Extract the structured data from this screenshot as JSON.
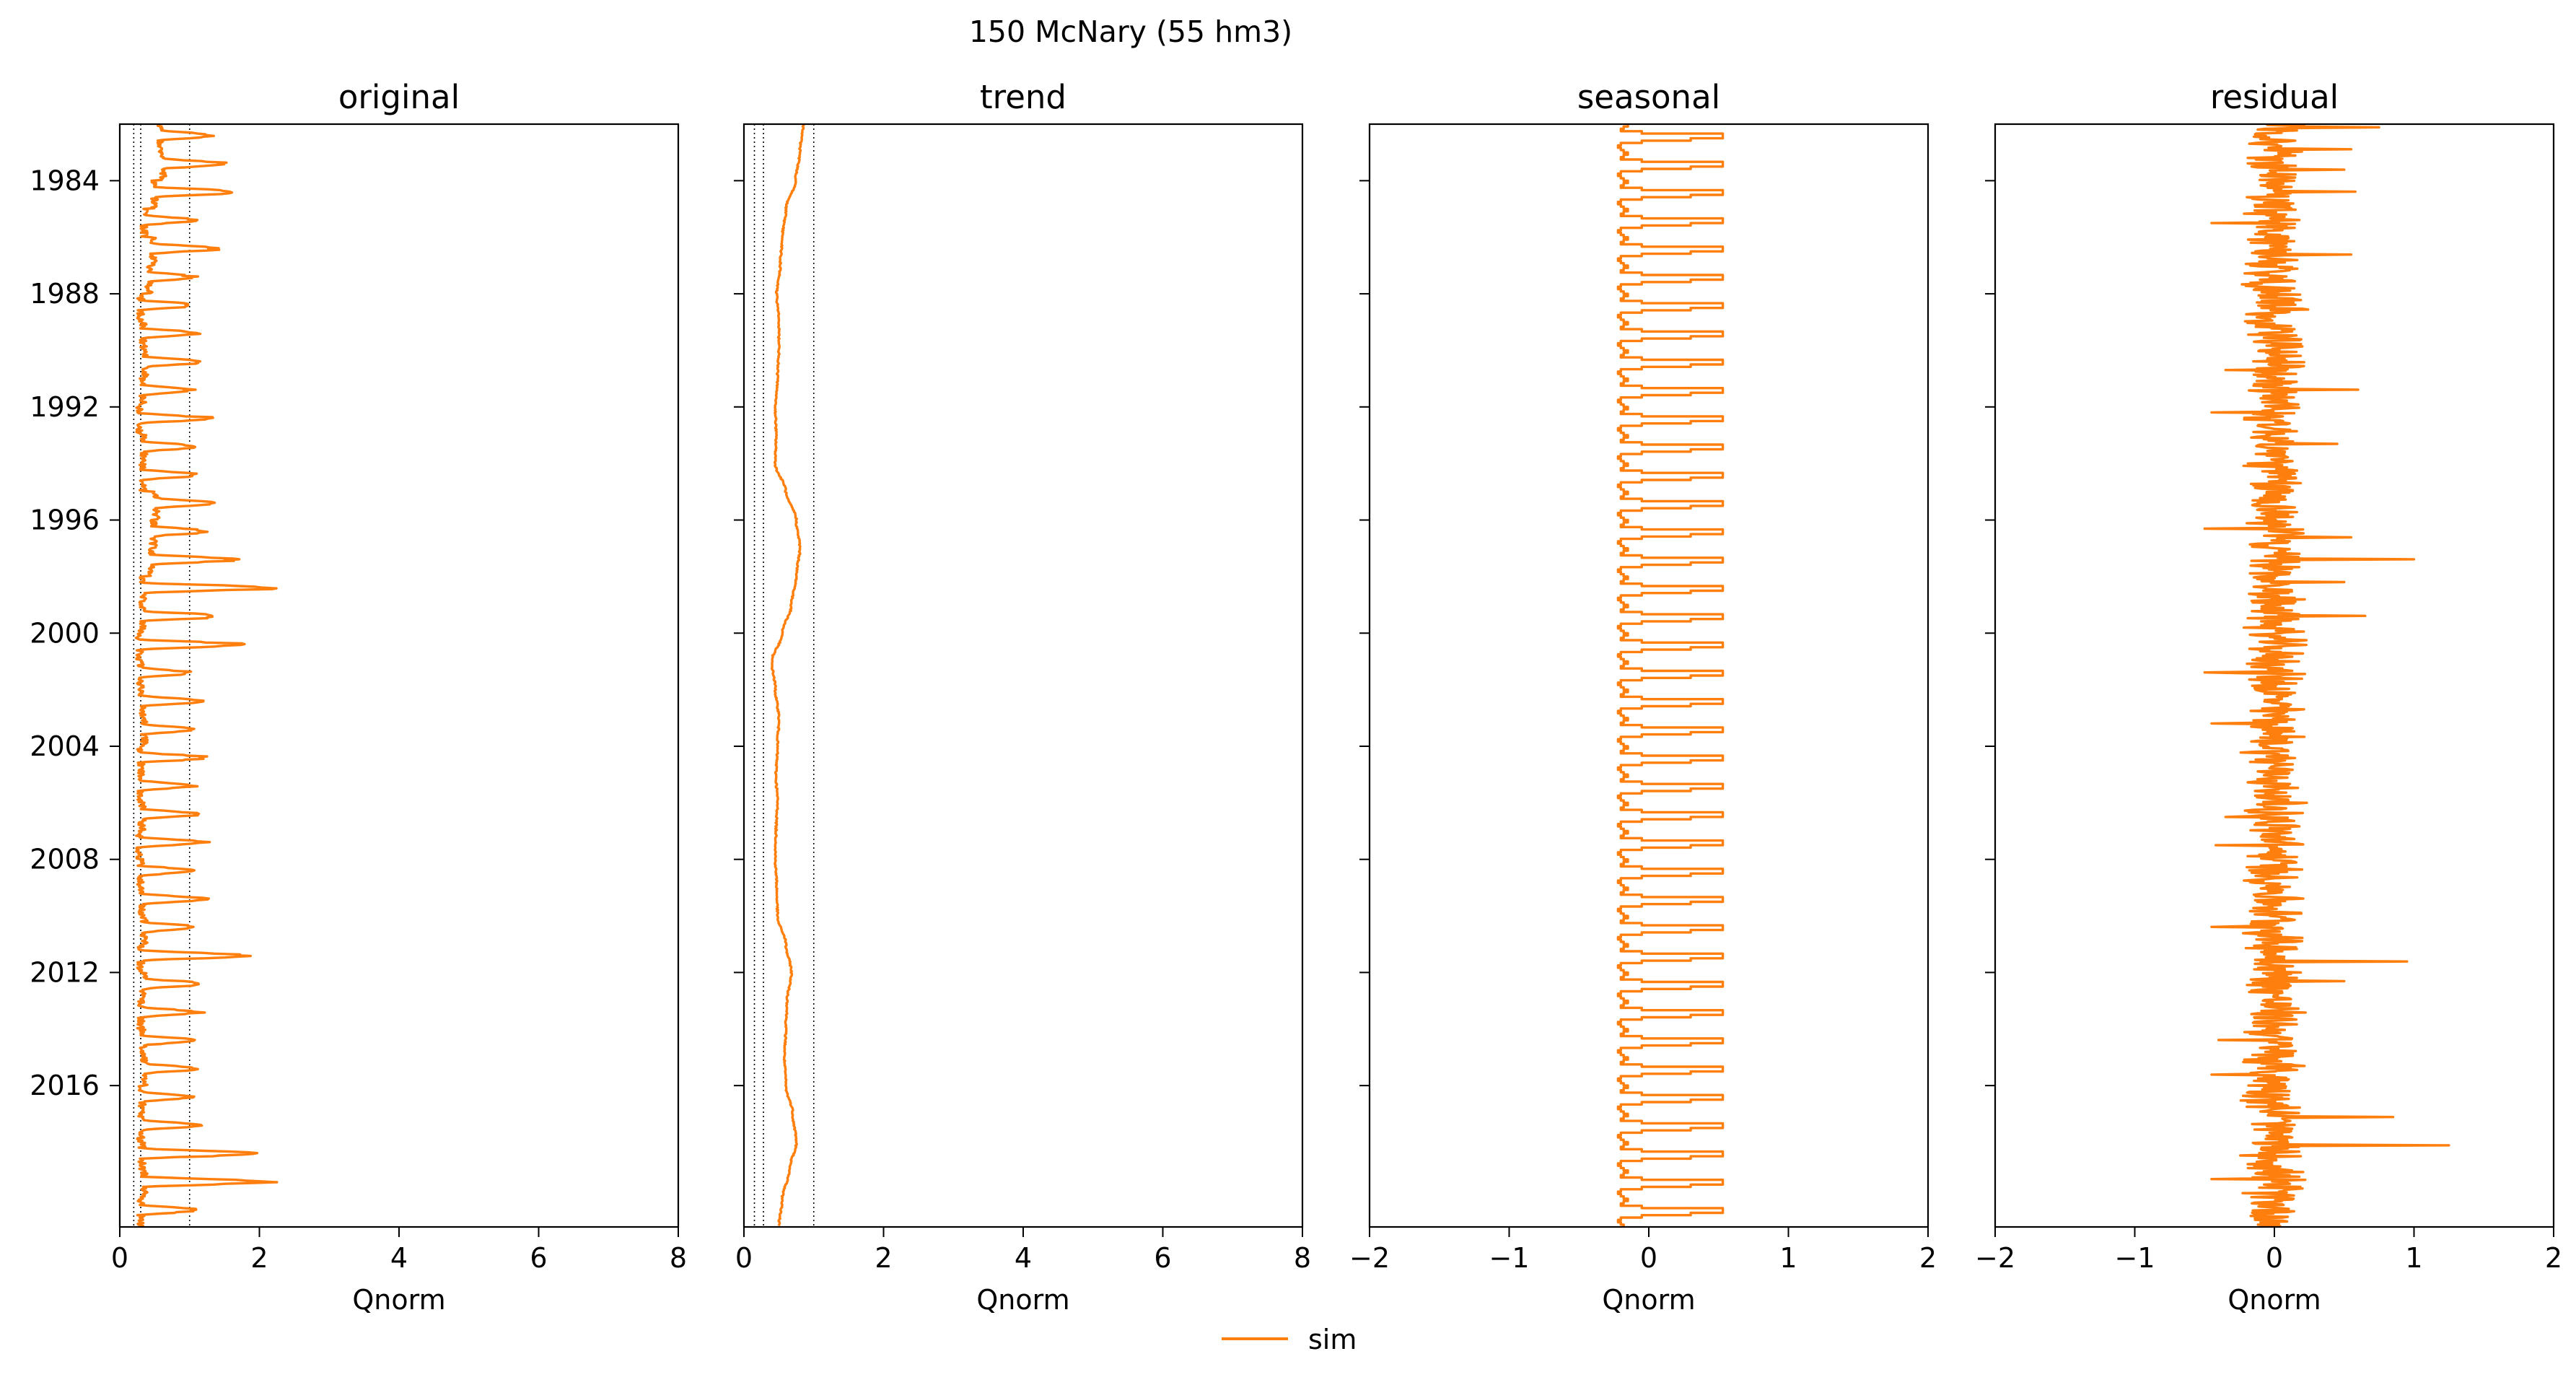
{
  "figure": {
    "suptitle": "150  McNary (55 hm3)",
    "legend": {
      "label": "sim",
      "color": "#ff7f0e",
      "placement": "bottom-center"
    }
  },
  "chart_data": [
    {
      "type": "line",
      "title": "original",
      "xlabel": "Qnorm",
      "ylabel": "",
      "xlim": [
        0,
        8
      ],
      "xticks": [
        0,
        2,
        4,
        6,
        8
      ],
      "ylim": [
        "1982-01-01",
        "2020-12-31"
      ],
      "yticks": [
        "1984",
        "1988",
        "1992",
        "1996",
        "2000",
        "2004",
        "2008",
        "2012",
        "2016"
      ],
      "y_inverted": true,
      "show_yticklabels": true,
      "reference_lines_x": [
        0.2,
        0.3,
        1.0
      ],
      "series": [
        {
          "name": "sim",
          "color": "#ff7f0e",
          "baseline_by_year": [
            0.58,
            0.62,
            0.5,
            0.35,
            0.48,
            0.42,
            0.3,
            0.34,
            0.36,
            0.33,
            0.28,
            0.35,
            0.33,
            0.52,
            0.48,
            0.45,
            0.33,
            0.32,
            0.28,
            0.3,
            0.32,
            0.35,
            0.3,
            0.3,
            0.32,
            0.28,
            0.3,
            0.32,
            0.35,
            0.3,
            0.34,
            0.3,
            0.33,
            0.35,
            0.32,
            0.3,
            0.32,
            0.35,
            0.3
          ],
          "peak_by_year": [
            1.4,
            1.6,
            1.8,
            1.15,
            1.5,
            1.1,
            1.15,
            1.2,
            1.3,
            1.1,
            1.4,
            1.2,
            1.2,
            1.45,
            1.3,
            1.8,
            2.4,
            1.55,
            1.85,
            1.05,
            1.3,
            1.15,
            1.35,
            1.1,
            1.2,
            1.35,
            1.1,
            1.35,
            1.2,
            1.95,
            1.3,
            1.2,
            1.15,
            1.2,
            1.05,
            1.25,
            2.2,
            2.3,
            1.2
          ]
        }
      ]
    },
    {
      "type": "line",
      "title": "trend",
      "xlabel": "Qnorm",
      "ylabel": "",
      "xlim": [
        0,
        8
      ],
      "xticks": [
        0,
        2,
        4,
        6,
        8
      ],
      "ylim": [
        "1982-01-01",
        "2020-12-31"
      ],
      "y_inverted": true,
      "show_yticklabels": false,
      "reference_lines_x": [
        0.15,
        0.28,
        1.0
      ],
      "series": [
        {
          "name": "sim",
          "color": "#ff7f0e",
          "points": [
            [
              "1982.0",
              0.85
            ],
            [
              "1983.0",
              0.8
            ],
            [
              "1984.0",
              0.74
            ],
            [
              "1985.0",
              0.6
            ],
            [
              "1986.0",
              0.55
            ],
            [
              "1987.0",
              0.52
            ],
            [
              "1988.0",
              0.47
            ],
            [
              "1989.0",
              0.5
            ],
            [
              "1990.0",
              0.5
            ],
            [
              "1991.0",
              0.48
            ],
            [
              "1992.0",
              0.45
            ],
            [
              "1993.0",
              0.46
            ],
            [
              "1994.0",
              0.45
            ],
            [
              "1995.0",
              0.6
            ],
            [
              "1996.0",
              0.75
            ],
            [
              "1997.0",
              0.8
            ],
            [
              "1998.0",
              0.75
            ],
            [
              "1999.0",
              0.68
            ],
            [
              "2000.0",
              0.55
            ],
            [
              "2001.0",
              0.4
            ],
            [
              "2002.0",
              0.45
            ],
            [
              "2003.0",
              0.5
            ],
            [
              "2004.0",
              0.48
            ],
            [
              "2005.0",
              0.46
            ],
            [
              "2006.0",
              0.48
            ],
            [
              "2007.0",
              0.46
            ],
            [
              "2008.0",
              0.45
            ],
            [
              "2009.0",
              0.47
            ],
            [
              "2010.0",
              0.48
            ],
            [
              "2011.0",
              0.6
            ],
            [
              "2012.0",
              0.68
            ],
            [
              "2013.0",
              0.62
            ],
            [
              "2014.0",
              0.6
            ],
            [
              "2015.0",
              0.58
            ],
            [
              "2016.0",
              0.6
            ],
            [
              "2017.0",
              0.7
            ],
            [
              "2018.0",
              0.75
            ],
            [
              "2019.0",
              0.65
            ],
            [
              "2020.0",
              0.55
            ],
            [
              "2021.0",
              0.5
            ]
          ]
        }
      ]
    },
    {
      "type": "line",
      "title": "seasonal",
      "xlabel": "Qnorm",
      "ylabel": "",
      "xlim": [
        -2,
        2
      ],
      "xticks": [
        -2,
        -1,
        0,
        1,
        2
      ],
      "ylim": [
        "1982-01-01",
        "2020-12-31"
      ],
      "y_inverted": true,
      "show_yticklabels": false,
      "series": [
        {
          "name": "sim",
          "color": "#ff7f0e",
          "annual_cycle": {
            "min": -0.22,
            "max": 0.53,
            "monthly_values": [
              -0.15,
              -0.18,
              -0.2,
              -0.05,
              0.53,
              0.53,
              0.3,
              -0.05,
              -0.2,
              -0.22,
              -0.2,
              -0.18
            ]
          }
        }
      ]
    },
    {
      "type": "line",
      "title": "residual",
      "xlabel": "Qnorm",
      "ylabel": "",
      "xlim": [
        -2,
        2
      ],
      "xticks": [
        -2,
        -1,
        0,
        1,
        2
      ],
      "ylim": [
        "1982-01-01",
        "2020-12-31"
      ],
      "y_inverted": true,
      "show_yticklabels": false,
      "series": [
        {
          "name": "sim",
          "color": "#ff7f0e",
          "typical_amplitude": 0.25,
          "spikes": [
            [
              "1982.1",
              0.75
            ],
            [
              "1982.9",
              0.55
            ],
            [
              "1983.6",
              0.5
            ],
            [
              "1984.4",
              0.58
            ],
            [
              "1985.5",
              -0.45
            ],
            [
              "1986.6",
              0.55
            ],
            [
              "1990.7",
              -0.35
            ],
            [
              "1991.4",
              0.6
            ],
            [
              "1992.2",
              -0.45
            ],
            [
              "1993.3",
              0.45
            ],
            [
              "1996.3",
              -0.5
            ],
            [
              "1996.6",
              0.55
            ],
            [
              "1997.4",
              1.0
            ],
            [
              "1998.2",
              0.5
            ],
            [
              "1999.4",
              0.65
            ],
            [
              "2001.4",
              -0.5
            ],
            [
              "2003.2",
              -0.45
            ],
            [
              "2006.5",
              -0.35
            ],
            [
              "2007.5",
              -0.42
            ],
            [
              "2010.4",
              -0.45
            ],
            [
              "2011.6",
              0.95
            ],
            [
              "2012.3",
              0.5
            ],
            [
              "2014.4",
              -0.4
            ],
            [
              "2015.6",
              -0.45
            ],
            [
              "2017.1",
              0.85
            ],
            [
              "2018.1",
              1.25
            ],
            [
              "2019.3",
              -0.45
            ]
          ]
        }
      ]
    }
  ]
}
